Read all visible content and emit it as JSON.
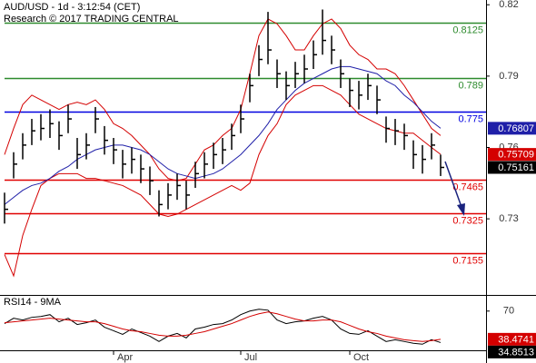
{
  "chart_data": [
    {
      "type": "ohlc",
      "title": "AUD/USD - 1d - 3:12:54 (CET)",
      "subtitle": "Research © 2017 TRADING CENTRAL",
      "color": "#000000",
      "high": [
        0.741,
        0.758,
        0.766,
        0.772,
        0.774,
        0.776,
        0.771,
        0.778,
        0.764,
        0.766,
        0.777,
        0.769,
        0.764,
        0.759,
        0.76,
        0.757,
        0.752,
        0.742,
        0.745,
        0.749,
        0.746,
        0.754,
        0.758,
        0.762,
        0.764,
        0.77,
        0.778,
        0.791,
        0.803,
        0.817,
        0.797,
        0.792,
        0.796,
        0.799,
        0.805,
        0.818,
        0.807,
        0.797,
        0.789,
        0.788,
        0.791,
        0.786,
        0.773,
        0.772,
        0.77,
        0.763,
        0.761,
        0.766,
        0.757
      ],
      "low": [
        0.728,
        0.747,
        0.755,
        0.761,
        0.763,
        0.764,
        0.759,
        0.766,
        0.751,
        0.755,
        0.766,
        0.757,
        0.753,
        0.747,
        0.749,
        0.745,
        0.74,
        0.731,
        0.734,
        0.738,
        0.734,
        0.743,
        0.747,
        0.751,
        0.753,
        0.759,
        0.766,
        0.779,
        0.79,
        0.795,
        0.785,
        0.78,
        0.785,
        0.787,
        0.793,
        0.799,
        0.795,
        0.785,
        0.777,
        0.776,
        0.78,
        0.774,
        0.762,
        0.761,
        0.759,
        0.751,
        0.749,
        0.755,
        0.748
      ],
      "close": [
        0.734,
        0.753,
        0.761,
        0.767,
        0.768,
        0.77,
        0.765,
        0.772,
        0.757,
        0.761,
        0.772,
        0.763,
        0.759,
        0.753,
        0.755,
        0.751,
        0.746,
        0.736,
        0.74,
        0.744,
        0.74,
        0.749,
        0.753,
        0.757,
        0.759,
        0.765,
        0.772,
        0.786,
        0.797,
        0.801,
        0.791,
        0.786,
        0.791,
        0.793,
        0.799,
        0.805,
        0.801,
        0.791,
        0.784,
        0.782,
        0.786,
        0.78,
        0.768,
        0.767,
        0.765,
        0.757,
        0.755,
        0.761,
        0.75161
      ],
      "overlays": [
        {
          "color": "#d40000",
          "values": [
            0.757,
            0.768,
            0.778,
            0.782,
            0.78,
            0.778,
            0.776,
            0.778,
            0.779,
            0.778,
            0.78,
            0.776,
            0.77,
            0.768,
            0.765,
            0.761,
            0.757,
            0.751,
            0.747,
            0.746,
            0.747,
            0.753,
            0.759,
            0.761,
            0.765,
            0.768,
            0.776,
            0.791,
            0.807,
            0.814,
            0.812,
            0.807,
            0.801,
            0.801,
            0.807,
            0.812,
            0.814,
            0.81,
            0.803,
            0.799,
            0.797,
            0.793,
            0.793,
            0.791,
            0.786,
            0.78,
            0.774,
            0.768,
            0.765
          ]
        },
        {
          "color": "#d40000",
          "last_tag": true,
          "values": [
            0.715,
            0.706,
            0.723,
            0.734,
            0.744,
            0.747,
            0.749,
            0.749,
            0.749,
            0.747,
            0.747,
            0.746,
            0.745,
            0.744,
            0.742,
            0.74,
            0.736,
            0.732,
            0.731,
            0.732,
            0.734,
            0.736,
            0.738,
            0.74,
            0.742,
            0.744,
            0.742,
            0.745,
            0.757,
            0.765,
            0.77,
            0.778,
            0.782,
            0.784,
            0.786,
            0.786,
            0.784,
            0.782,
            0.778,
            0.774,
            0.772,
            0.77,
            0.768,
            0.767,
            0.766,
            0.766,
            0.763,
            0.76,
            0.75709
          ]
        },
        {
          "color": "#1f1fa8",
          "last_tag": true,
          "values": [
            0.736,
            0.739,
            0.742,
            0.744,
            0.745,
            0.747,
            0.75,
            0.752,
            0.755,
            0.757,
            0.759,
            0.76,
            0.761,
            0.761,
            0.76,
            0.759,
            0.757,
            0.754,
            0.751,
            0.749,
            0.748,
            0.747,
            0.748,
            0.749,
            0.751,
            0.754,
            0.757,
            0.761,
            0.765,
            0.77,
            0.776,
            0.78,
            0.784,
            0.787,
            0.789,
            0.791,
            0.793,
            0.794,
            0.794,
            0.793,
            0.792,
            0.791,
            0.788,
            0.786,
            0.782,
            0.779,
            0.775,
            0.771,
            0.76807
          ]
        }
      ],
      "levels": [
        {
          "value": 0.8125,
          "color": "#2e8b2e"
        },
        {
          "value": 0.789,
          "color": "#2e8b2e"
        },
        {
          "value": 0.775,
          "color": "#0000e0"
        },
        {
          "value": 0.7465,
          "color": "#e00000"
        },
        {
          "value": 0.7325,
          "color": "#e00000"
        },
        {
          "value": 0.7155,
          "color": "#e00000"
        }
      ],
      "ylim": [
        0.698,
        0.822
      ],
      "yticks": [
        0.82,
        0.79,
        0.76,
        0.73
      ]
    },
    {
      "type": "line",
      "title": "RSI14 - 9MA",
      "categories": [
        null,
        null,
        null,
        null,
        null,
        null,
        null,
        null,
        null,
        null,
        null,
        null,
        "Apr",
        null,
        null,
        null,
        null,
        null,
        null,
        null,
        null,
        null,
        null,
        null,
        null,
        null,
        "Jul",
        null,
        null,
        null,
        null,
        null,
        null,
        null,
        null,
        null,
        null,
        null,
        "Oct",
        null,
        null,
        null,
        null,
        null,
        null,
        null,
        null,
        null,
        null
      ],
      "series": [
        {
          "color": "#000000",
          "values": [
            56,
            62,
            60,
            63,
            64,
            66,
            58,
            62,
            55,
            57,
            60,
            52,
            48,
            44,
            50,
            46,
            42,
            36,
            42,
            45,
            40,
            50,
            52,
            55,
            56,
            60,
            66,
            70,
            72,
            71,
            60,
            56,
            58,
            59,
            62,
            64,
            60,
            50,
            45,
            44,
            48,
            42,
            36,
            38,
            36,
            34,
            33,
            38,
            34.8513
          ]
        },
        {
          "color": "#d40000",
          "values": [
            57,
            58,
            59,
            60,
            61,
            62,
            61,
            60,
            59,
            58,
            58,
            56,
            53,
            50,
            48,
            47,
            45,
            43,
            42,
            42,
            43,
            45,
            47,
            50,
            53,
            56,
            60,
            64,
            67,
            69,
            67,
            64,
            61,
            59,
            59,
            60,
            60,
            58,
            54,
            50,
            47,
            45,
            42,
            40,
            38,
            37,
            36,
            37,
            38.4741
          ]
        }
      ],
      "ylim": [
        14,
        86
      ],
      "yticks": [
        70
      ]
    }
  ]
}
